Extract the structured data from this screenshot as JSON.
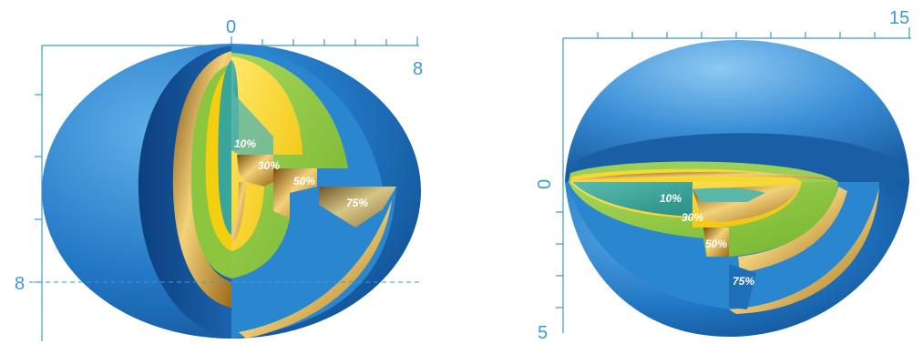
{
  "left_figure": {
    "axis_labels": {
      "top_zero": "0",
      "top_right": "8",
      "left_eight": "8"
    },
    "shell_labels": [
      "10%",
      "30%",
      "50%",
      "75%"
    ]
  },
  "right_figure": {
    "axis_labels": {
      "top_right": "15",
      "left_zero": "0",
      "left_bottom": "5"
    },
    "shell_labels": [
      "10%",
      "30%",
      "50%",
      "75%"
    ]
  },
  "colors": {
    "axis": "#3a9ad9",
    "outer_shell": "#1f6fb8",
    "shell_75": "#2a86cf",
    "shell_50": "#8cc63e",
    "shell_30": "#f4cf10",
    "shell_10": "#3aa59a",
    "gold_edge": "#c9972a"
  }
}
